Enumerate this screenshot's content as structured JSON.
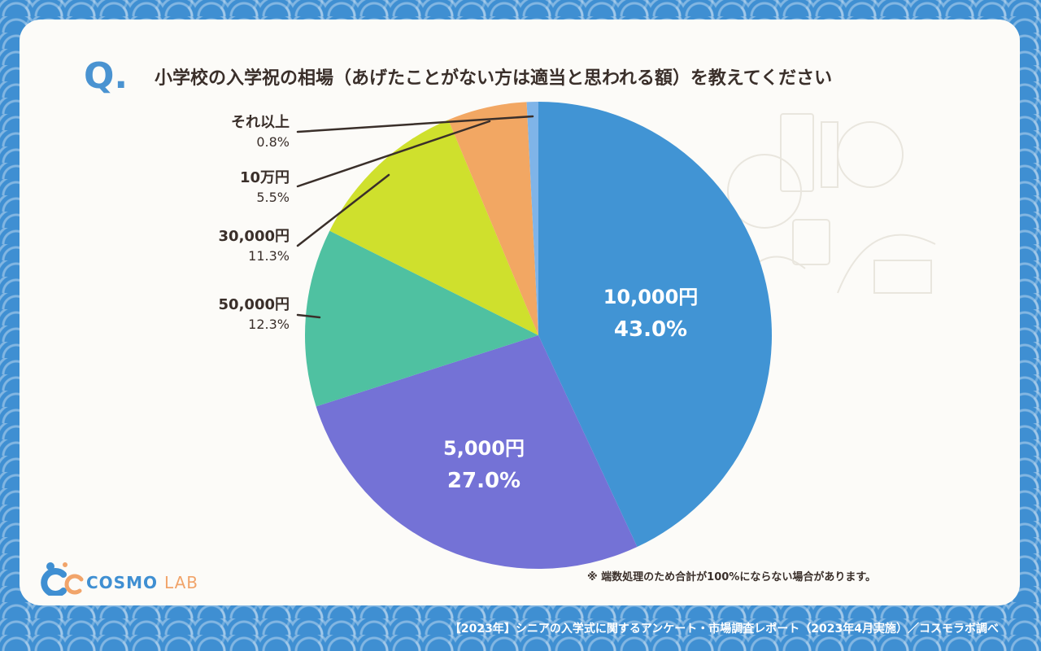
{
  "question": {
    "mark": "Q.",
    "text": "小学校の入学祝の相場（あげたことがない方は適当と思われる額）を教えてください"
  },
  "chart_data": {
    "type": "pie",
    "title": "小学校の入学祝の相場（あげたことがない方は適当と思われる額）を教えてください",
    "slices": [
      {
        "label": "10,000円",
        "value": 43.0,
        "pct_text": "43.0%",
        "color": "#4194d4"
      },
      {
        "label": "5,000円",
        "value": 27.0,
        "pct_text": "27.0%",
        "color": "#7472d6"
      },
      {
        "label": "50,000円",
        "value": 12.3,
        "pct_text": "12.3%",
        "color": "#4fc1a1"
      },
      {
        "label": "30,000円",
        "value": 11.3,
        "pct_text": "11.3%",
        "color": "#cfe02d"
      },
      {
        "label": "10万円",
        "value": 5.5,
        "pct_text": "5.5%",
        "color": "#f2a763"
      },
      {
        "label": "それ以上",
        "value": 0.8,
        "pct_text": "0.8%",
        "color": "#7fb4e8"
      }
    ]
  },
  "note": "※ 端数処理のため合計が100%にならない場合があります。",
  "logo": {
    "cosmo": "COSMO",
    "lab": "LAB"
  },
  "footer": "【2023年】シニアの入学式に関するアンケート・市場調査レポート（2023年4月実施）／コスモラボ調べ"
}
